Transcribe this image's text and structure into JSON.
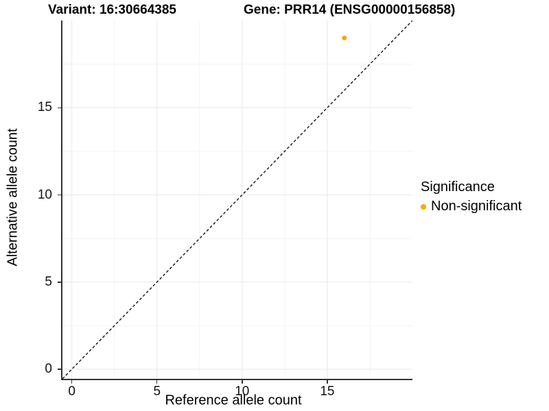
{
  "titles": {
    "variant": "Variant: 16:30664385",
    "gene": "Gene: PRR14 (ENSG00000156858)"
  },
  "axes": {
    "x": {
      "label": "Reference allele count",
      "ticks": [
        0,
        5,
        10,
        15
      ]
    },
    "y": {
      "label": "Alternative allele count",
      "ticks": [
        0,
        5,
        10,
        15
      ]
    }
  },
  "legend": {
    "title": "Significance",
    "items": [
      {
        "label": "Non-significant",
        "color": "#FFA500"
      }
    ]
  },
  "colors": {
    "point": "#FFA500",
    "grid_major": "#E7E7E7",
    "grid_minor": "#F3F3F3",
    "axis_line": "#333333",
    "identity_line": "#000000",
    "background": "#FFFFFF"
  },
  "chart_data": {
    "type": "scatter",
    "title": "Variant: 16:30664385 | Gene: PRR14 (ENSG00000156858)",
    "xlabel": "Reference allele count",
    "ylabel": "Alternative allele count",
    "xlim": [
      -0.55,
      20.0
    ],
    "ylim": [
      -0.55,
      20.0
    ],
    "x_ticks": [
      0,
      5,
      10,
      15
    ],
    "y_ticks": [
      0,
      5,
      10,
      15
    ],
    "minor_ticks": [
      2.5,
      7.5,
      12.5,
      17.5
    ],
    "grid": true,
    "legend_position": "right",
    "series": [
      {
        "name": "Non-significant",
        "color": "#FFA500",
        "points": [
          {
            "x": 16,
            "y": 19
          }
        ],
        "point_radius": 3.5
      }
    ],
    "reference_line": {
      "type": "identity",
      "equation": "y = x",
      "style": "dashed",
      "color": "#000000"
    }
  }
}
